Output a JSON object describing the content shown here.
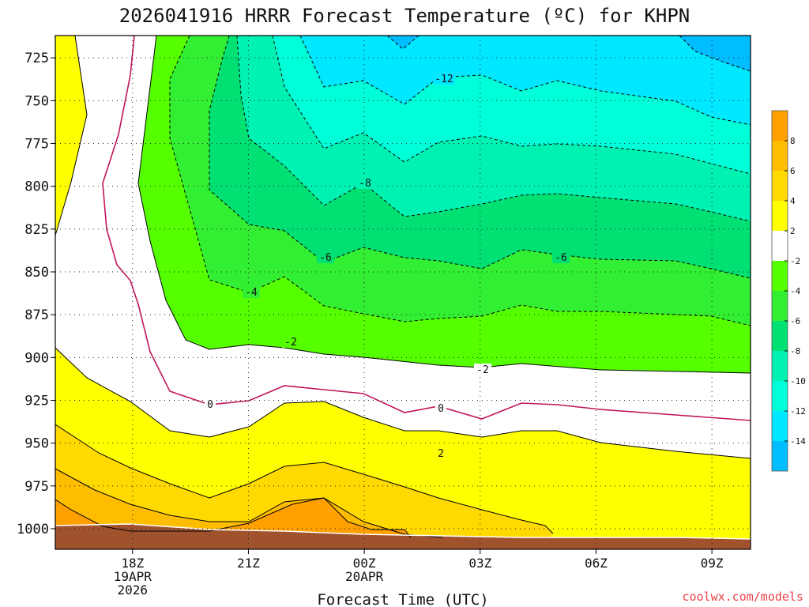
{
  "chart_data": {
    "type": "contour",
    "title": "2026041916 HRRR Forecast Temperature (ºC) for KHPN",
    "xlabel": "Forecast Time (UTC)",
    "ylabel": "",
    "x_ticks": [
      {
        "lines": [
          "18Z",
          "19APR",
          "2026"
        ]
      },
      {
        "lines": [
          "21Z"
        ]
      },
      {
        "lines": [
          "00Z",
          "20APR"
        ]
      },
      {
        "lines": [
          "03Z"
        ]
      },
      {
        "lines": [
          "06Z"
        ]
      },
      {
        "lines": [
          "09Z"
        ]
      }
    ],
    "x_range_hours": [
      -2,
      16
    ],
    "y_ticks": [
      725,
      750,
      775,
      800,
      825,
      850,
      875,
      900,
      925,
      950,
      975,
      1000
    ],
    "y_range_hPa": [
      712,
      1012
    ],
    "y_scale": "pressure (increasing downward)",
    "grid": "dotted",
    "contour_interval_C": 2,
    "contour_labels": [
      {
        "text": "-12"
      },
      {
        "text": "-8"
      },
      {
        "text": "-6"
      },
      {
        "text": "-6"
      },
      {
        "text": "-4"
      },
      {
        "text": "-2"
      },
      {
        "text": "-2"
      },
      {
        "text": "0"
      },
      {
        "text": "0"
      },
      {
        "text": "2"
      }
    ],
    "freezing_line_color": "#c0145c",
    "colorbar": {
      "labels": [
        "8",
        "6",
        "4",
        "2",
        "-2",
        "-4",
        "-6",
        "-8",
        "-10",
        "-12",
        "-14"
      ],
      "colors": [
        "#ff9f00",
        "#ffbd00",
        "#ffd900",
        "#ffff00",
        "#ffffff",
        "#55ff00",
        "#33ef33",
        "#00e073",
        "#00f2b2",
        "#00ffd8",
        "#00e8ff",
        "#00bdff"
      ]
    },
    "fill_colors": {
      "ground": "#a0522d",
      "t_8_10": "#ff9f00",
      "t_6_8": "#ffbd00",
      "t_4_6": "#ffd900",
      "t_2_4": "#ffff00",
      "t_m2_2": "#ffffff",
      "t_m4_m2": "#55ff00",
      "t_m6_m4": "#33ef33",
      "t_m8_m6": "#00e073",
      "t_m10_m8": "#00f2b2",
      "t_m12_m10": "#00ffd8",
      "t_m14_m12": "#00e8ff",
      "t_m16_m14": "#00bdff"
    },
    "watermark": "coolwx.com/models"
  }
}
